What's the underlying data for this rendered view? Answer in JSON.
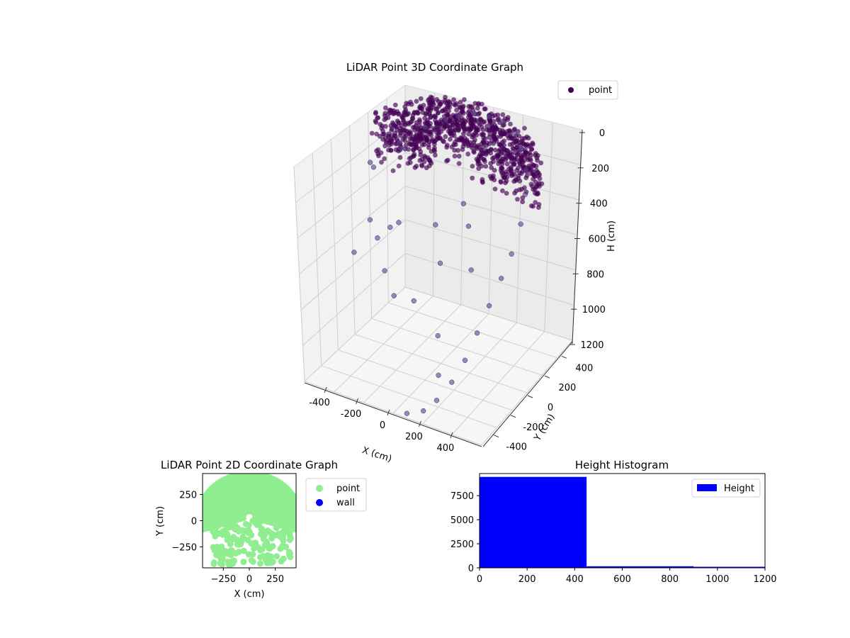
{
  "chart_data": [
    {
      "type": "scatter",
      "subtype": "3d",
      "title": "LiDAR Point 3D Coordinate Graph",
      "xlabel": "X (cm)",
      "ylabel": "Y (cm)",
      "zlabel": "H (cm)",
      "xticks": [
        "-400",
        "-200",
        "0",
        "200",
        "400"
      ],
      "yticks": [
        "-400",
        "-200",
        "0",
        "200",
        "400"
      ],
      "zticks": [
        "0",
        "200",
        "400",
        "600",
        "800",
        "1000",
        "1200"
      ],
      "xlim": [
        -450,
        450
      ],
      "ylim": [
        -450,
        450
      ],
      "zlim": [
        1200,
        0
      ],
      "grid": true,
      "legend": {
        "entries": [
          "point"
        ],
        "placement": "top-right"
      },
      "series": [
        {
          "name": "point",
          "color": "#440154",
          "description_of_values": "dense ring-shaped cluster at H≈0–300 cm plus sparse falling points",
          "points": [
            [
              -420,
              200,
              380
            ],
            [
              -360,
              120,
              330
            ],
            [
              -300,
              260,
              260
            ],
            [
              -250,
              180,
              220
            ],
            [
              -200,
              330,
              180
            ],
            [
              -120,
              380,
              140
            ],
            [
              -60,
              390,
              100
            ],
            [
              20,
              400,
              60
            ],
            [
              100,
              390,
              40
            ],
            [
              180,
              370,
              20
            ],
            [
              260,
              330,
              30
            ],
            [
              320,
              280,
              60
            ],
            [
              370,
              220,
              120
            ],
            [
              400,
              150,
              200
            ],
            [
              420,
              60,
              300
            ],
            [
              410,
              -20,
              420
            ],
            [
              390,
              -90,
              520
            ],
            [
              360,
              -160,
              640
            ],
            [
              330,
              -230,
              760
            ],
            [
              300,
              -300,
              880
            ],
            [
              260,
              -360,
              980
            ],
            [
              200,
              -400,
              1080
            ],
            [
              140,
              -420,
              1150
            ],
            [
              60,
              -430,
              1190
            ],
            [
              -80,
              -250,
              700
            ],
            [
              -150,
              -200,
              620
            ],
            [
              -220,
              80,
              560
            ],
            [
              -300,
              20,
              640
            ],
            [
              -60,
              -100,
              820
            ],
            [
              100,
              -180,
              900
            ],
            [
              160,
              -300,
              1020
            ],
            [
              -20,
              60,
              480
            ],
            [
              40,
              -20,
              620
            ],
            [
              220,
              -60,
              560
            ],
            [
              -380,
              -60,
              700
            ],
            [
              -340,
              30,
              560
            ],
            [
              80,
              150,
              380
            ],
            [
              150,
              60,
              420
            ],
            [
              -200,
              -40,
              500
            ]
          ]
        }
      ]
    },
    {
      "type": "scatter",
      "title": "LiDAR Point 2D Coordinate Graph",
      "xlabel": "X (cm)",
      "ylabel": "Y (cm)",
      "xticks": [
        "−250",
        "0",
        "250"
      ],
      "yticks": [
        "−250",
        "0",
        "250"
      ],
      "xlim": [
        -450,
        450
      ],
      "ylim": [
        -450,
        450
      ],
      "grid": false,
      "legend": {
        "entries": [
          "point",
          "wall"
        ],
        "placement": "right, outside"
      },
      "series": [
        {
          "name": "point",
          "color": "#90ee90",
          "shape": "concentric half-rings centered near origin, radius up to ~450"
        },
        {
          "name": "wall",
          "color": "#0000ff",
          "points": []
        }
      ]
    },
    {
      "type": "bar",
      "subtype": "histogram",
      "title": "Height Histogram",
      "xlabel": "",
      "ylabel": "",
      "bin_edges": [
        0,
        450,
        900,
        1200
      ],
      "values": [
        9450,
        160,
        110
      ],
      "xticks": [
        "0",
        "200",
        "400",
        "600",
        "800",
        "1000",
        "1200"
      ],
      "yticks": [
        "0",
        "2500",
        "5000",
        "7500"
      ],
      "xlim": [
        0,
        1200
      ],
      "ylim": [
        0,
        9800
      ],
      "grid": false,
      "legend": {
        "entries": [
          "Height"
        ],
        "placement": "top-right"
      },
      "series": [
        {
          "name": "Height",
          "color": "#0000ff"
        }
      ]
    }
  ]
}
